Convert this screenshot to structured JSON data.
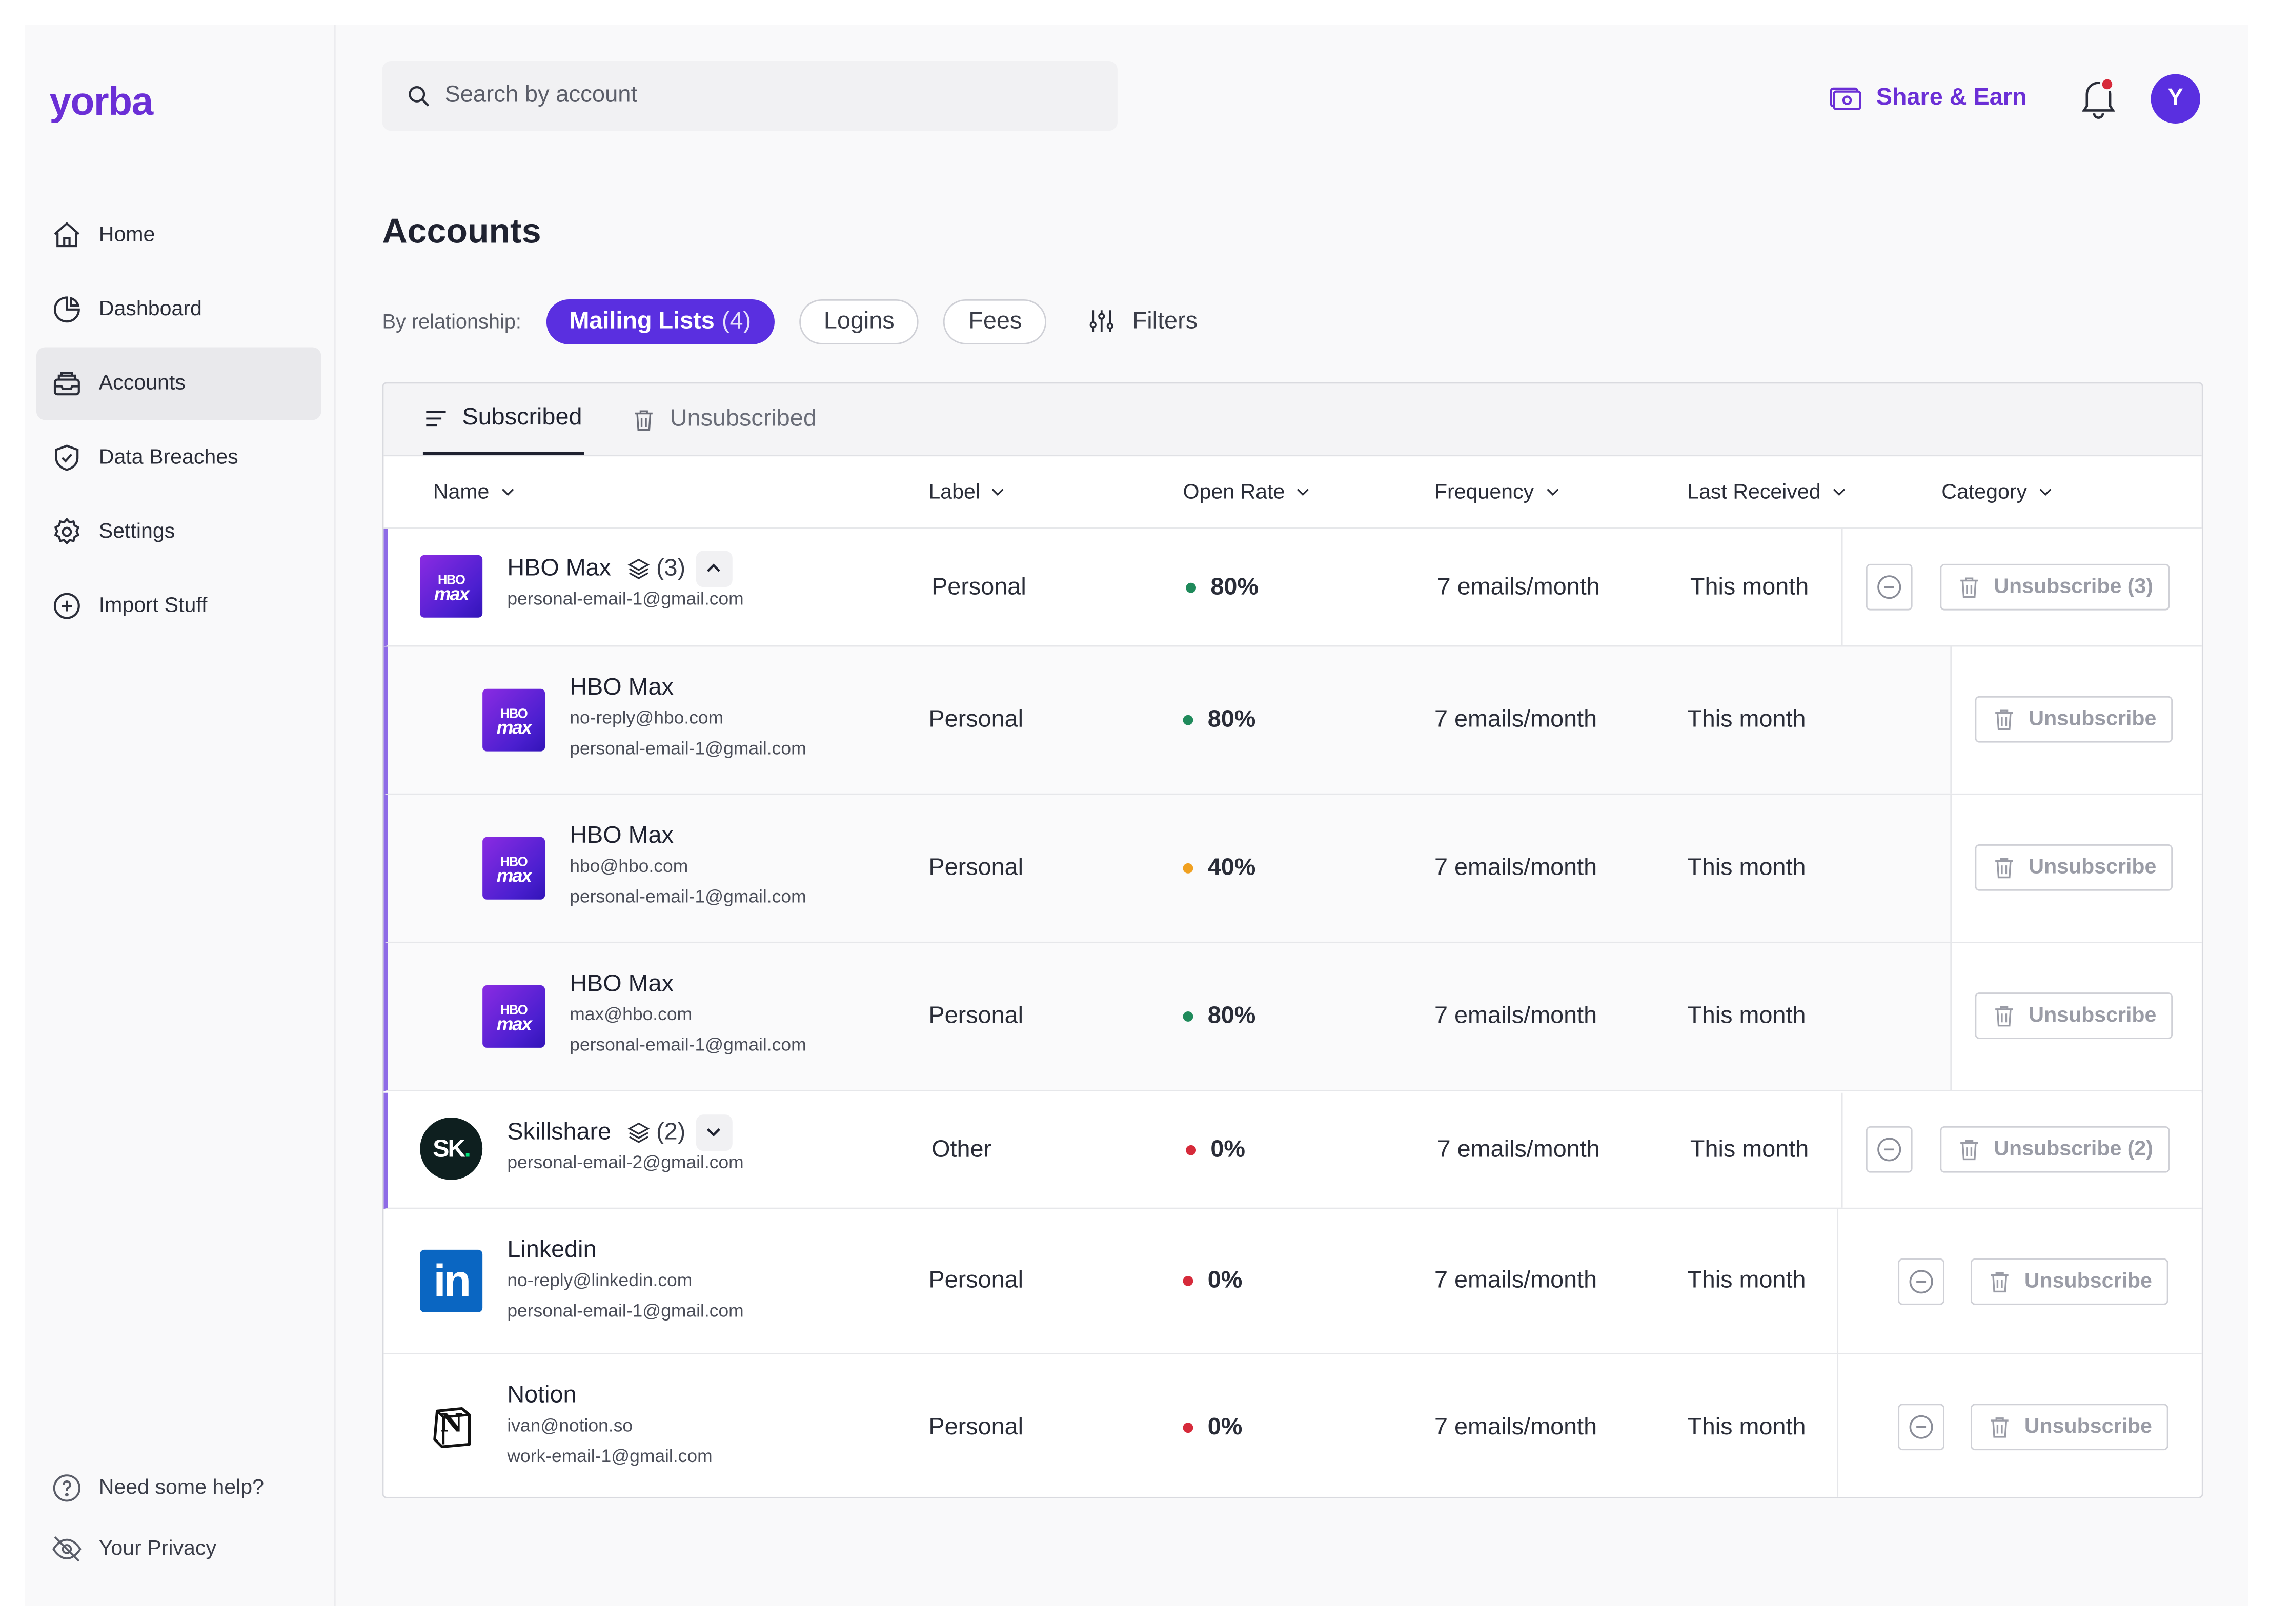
{
  "app": {
    "logo": "yorba"
  },
  "sidebar": {
    "items": [
      {
        "label": "Home",
        "icon": "home-icon"
      },
      {
        "label": "Dashboard",
        "icon": "pie-chart-icon"
      },
      {
        "label": "Accounts",
        "icon": "inbox-icon",
        "active": true
      },
      {
        "label": "Data Breaches",
        "icon": "shield-check-icon"
      },
      {
        "label": "Settings",
        "icon": "gear-icon"
      },
      {
        "label": "Import Stuff",
        "icon": "plus-circle-icon"
      }
    ],
    "bottom": [
      {
        "label": "Need some help?",
        "icon": "help-circle-icon"
      },
      {
        "label": "Your Privacy",
        "icon": "eye-off-icon"
      }
    ]
  },
  "header": {
    "search_placeholder": "Search by account",
    "share_label": "Share & Earn",
    "avatar_initial": "Y"
  },
  "page": {
    "title": "Accounts",
    "relationship_label": "By relationship:",
    "pills": [
      {
        "label": "Mailing Lists",
        "count": "(4)",
        "active": true
      },
      {
        "label": "Logins"
      },
      {
        "label": "Fees"
      }
    ],
    "filters_label": "Filters"
  },
  "table": {
    "tabs": {
      "subscribed": "Subscribed",
      "unsubscribed": "Unsubscribed"
    },
    "columns": [
      "Name",
      "Label",
      "Open Rate",
      "Frequency",
      "Last Received",
      "Category"
    ],
    "rows": [
      {
        "name": "HBO Max",
        "count": "(3)",
        "emails": [
          "personal-email-1@gmail.com"
        ],
        "label": "Personal",
        "open_rate": "80%",
        "rate_color": "#1f8a5b",
        "frequency": "7 emails/month",
        "last_received": "This month",
        "unsubscribe": "Unsubscribe (3)"
      },
      {
        "name": "HBO Max",
        "emails": [
          "no-reply@hbo.com",
          "personal-email-1@gmail.com"
        ],
        "label": "Personal",
        "open_rate": "80%",
        "rate_color": "#1f8a5b",
        "frequency": "7 emails/month",
        "last_received": "This month",
        "unsubscribe": "Unsubscribe"
      },
      {
        "name": "HBO Max",
        "emails": [
          "hbo@hbo.com",
          "personal-email-1@gmail.com"
        ],
        "label": "Personal",
        "open_rate": "40%",
        "rate_color": "#f0a020",
        "frequency": "7 emails/month",
        "last_received": "This month",
        "unsubscribe": "Unsubscribe"
      },
      {
        "name": "HBO Max",
        "emails": [
          "max@hbo.com",
          "personal-email-1@gmail.com"
        ],
        "label": "Personal",
        "open_rate": "80%",
        "rate_color": "#1f8a5b",
        "frequency": "7 emails/month",
        "last_received": "This month",
        "unsubscribe": "Unsubscribe"
      },
      {
        "name": "Skillshare",
        "count": "(2)",
        "emails": [
          "personal-email-2@gmail.com"
        ],
        "label": "Other",
        "open_rate": "0%",
        "rate_color": "#d62a3a",
        "frequency": "7 emails/month",
        "last_received": "This month",
        "unsubscribe": "Unsubscribe (2)"
      },
      {
        "name": "Linkedin",
        "emails": [
          "no-reply@linkedin.com",
          "personal-email-1@gmail.com"
        ],
        "label": "Personal",
        "open_rate": "0%",
        "rate_color": "#d62a3a",
        "frequency": "7 emails/month",
        "last_received": "This month",
        "unsubscribe": "Unsubscribe"
      },
      {
        "name": "Notion",
        "emails": [
          "ivan@notion.so",
          "work-email-1@gmail.com"
        ],
        "label": "Personal",
        "open_rate": "0%",
        "rate_color": "#d62a3a",
        "frequency": "7 emails/month",
        "last_received": "This month",
        "unsubscribe": "Unsubscribe"
      }
    ]
  },
  "logos": {
    "hbo_line1": "HBO",
    "hbo_line2": "max",
    "sk": "SK",
    "sk_dot": ".",
    "li": "in",
    "notion": "N"
  },
  "colors": {
    "accent": "#5a2fe0",
    "brand": "#6b2fd6",
    "notification_dot": "#d62a3a"
  }
}
